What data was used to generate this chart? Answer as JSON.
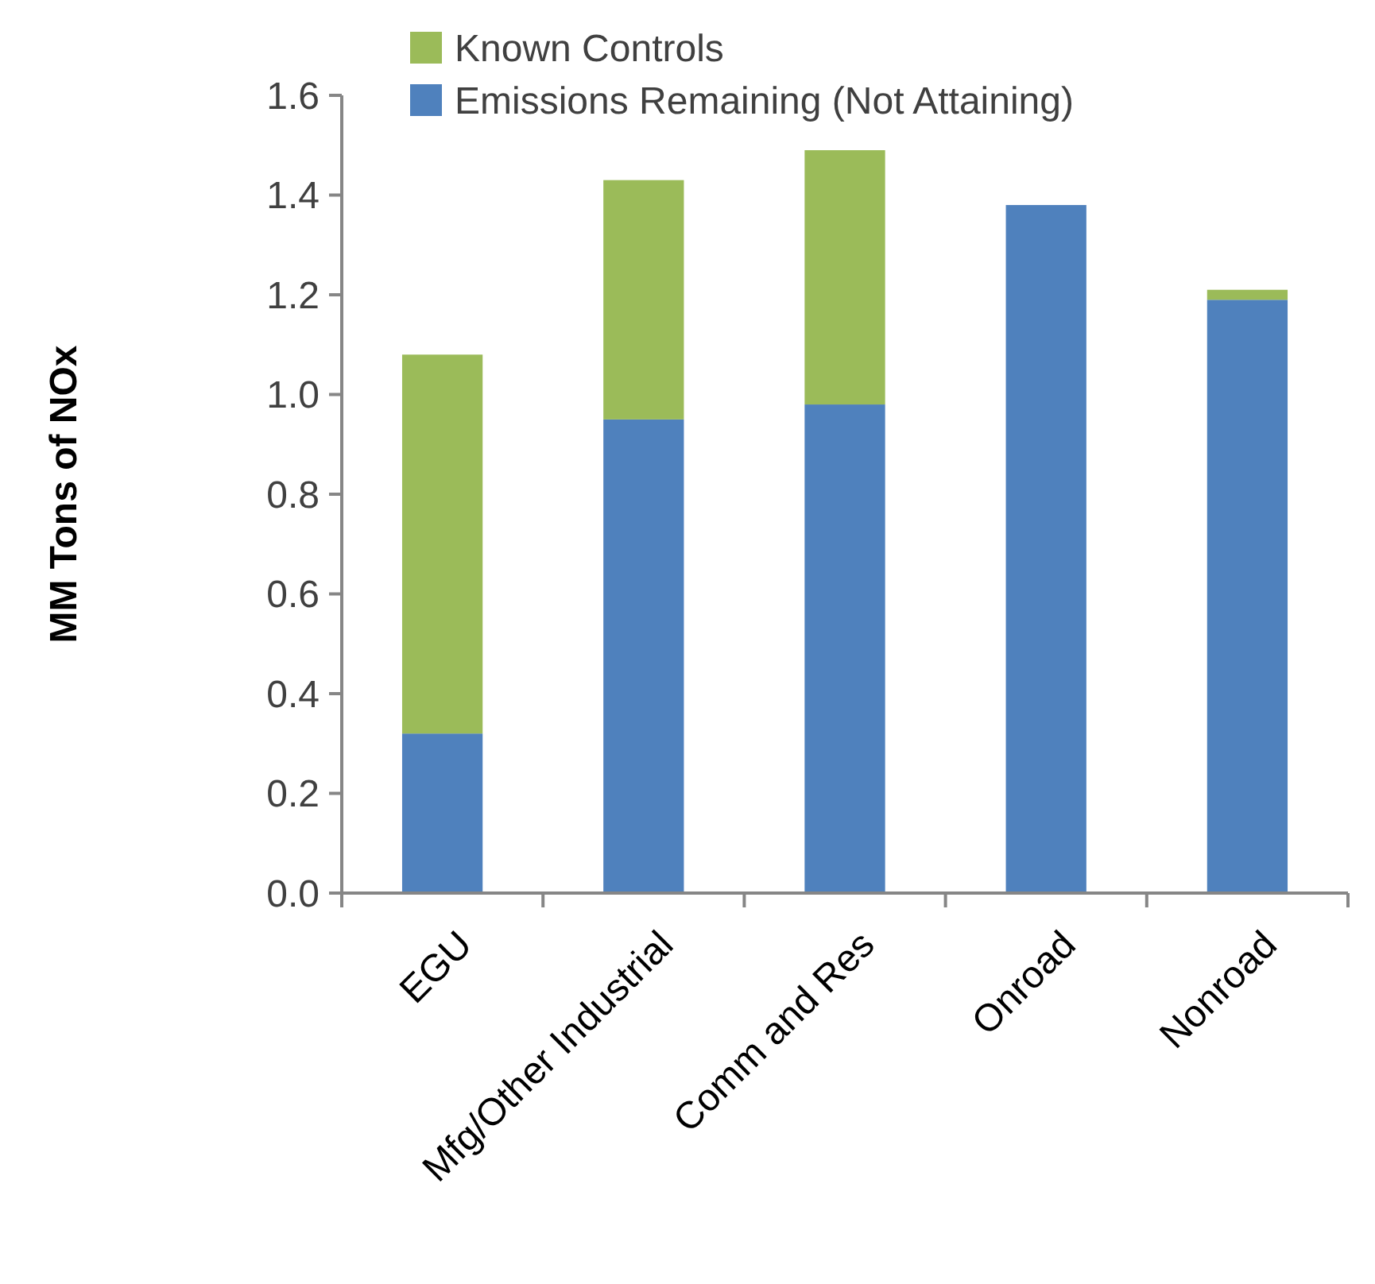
{
  "chart_data": {
    "type": "bar",
    "stacked": true,
    "ylabel": "MM Tons of NOx",
    "categories": [
      "EGU",
      "Mfg/Other Industrial",
      "Comm and Res",
      "Onroad",
      "Nonroad"
    ],
    "series": [
      {
        "name": "Emissions Remaining (Not Attaining)",
        "color": "#4f81bd",
        "values": [
          0.32,
          0.95,
          0.98,
          1.38,
          1.19
        ]
      },
      {
        "name": "Known Controls",
        "color": "#9bbb59",
        "values": [
          0.76,
          0.48,
          0.51,
          0,
          0.02
        ]
      }
    ],
    "ylim": [
      0,
      1.6
    ],
    "yticks": [
      {
        "value": 0,
        "label": "0.0"
      },
      {
        "value": 0.2,
        "label": "0.2"
      },
      {
        "value": 0.4,
        "label": "0.4"
      },
      {
        "value": 0.6,
        "label": "0.6"
      },
      {
        "value": 0.8,
        "label": "0.8"
      },
      {
        "value": 1.0,
        "label": "1.0"
      },
      {
        "value": 1.2,
        "label": "1.2"
      },
      {
        "value": 1.4,
        "label": "1.4"
      },
      {
        "value": 1.6,
        "label": "1.6"
      }
    ],
    "legend": "top",
    "grid": false
  }
}
